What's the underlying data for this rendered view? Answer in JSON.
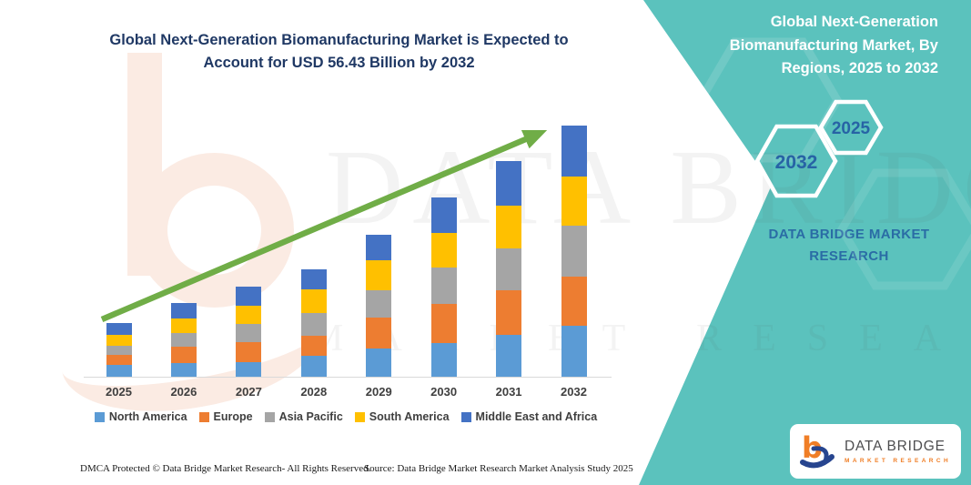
{
  "colors": {
    "teal": "#5BC2BD",
    "title_navy": "#1F3864",
    "hex_label_blue": "#2763A5",
    "arrow_green": "#70AD47",
    "axis_gray": "#D9D9D9"
  },
  "left_title": "Global Next-Generation Biomanufacturing Market is Expected to Account for USD 56.43 Billion by 2032",
  "right_panel": {
    "title": "Global Next-Generation Biomanufacturing Market, By Regions, 2025 to 2032",
    "hexagon_large_label": "2032",
    "hexagon_small_label": "2025",
    "brand_caption": "DATA BRIDGE MARKET RESEARCH"
  },
  "watermarks": {
    "big_text": "DATA BRIDGE",
    "small_text": "MARKET RESEARCH"
  },
  "chart_data": {
    "type": "bar",
    "stacked": true,
    "title": "Global Next-Generation Biomanufacturing Market is Expected to Account for USD 56.43 Billion by 2032",
    "unit": "USD Billion",
    "categories": [
      "2025",
      "2026",
      "2027",
      "2028",
      "2029",
      "2030",
      "2031",
      "2032"
    ],
    "series": [
      {
        "name": "North America",
        "color": "#5B9BD5",
        "values": [
          2.7,
          3.1,
          3.3,
          4.7,
          6.3,
          7.6,
          9.4,
          11.5
        ]
      },
      {
        "name": "Europe",
        "color": "#ED7D31",
        "values": [
          2.2,
          3.7,
          4.5,
          4.5,
          7.0,
          8.8,
          10.0,
          11.0
        ]
      },
      {
        "name": "Asia Pacific",
        "color": "#A5A5A5",
        "values": [
          2.0,
          3.1,
          4.1,
          5.1,
          6.1,
          8.2,
          9.4,
          11.5
        ]
      },
      {
        "name": "South America",
        "color": "#FFC000",
        "values": [
          2.5,
          3.1,
          4.1,
          5.3,
          6.7,
          7.8,
          9.6,
          11.0
        ]
      },
      {
        "name": "Middle East and Africa",
        "color": "#4472C4",
        "values": [
          2.7,
          3.5,
          4.3,
          4.5,
          5.9,
          8.0,
          10.0,
          11.4
        ]
      }
    ],
    "totals_usd_billion": [
      12.1,
      16.5,
      20.3,
      24.1,
      32.0,
      40.4,
      48.4,
      56.43
    ],
    "stated_value_2032": "USD 56.43 Billion",
    "ylim": [
      0,
      60
    ],
    "gridlines": false,
    "legend_position": "bottom",
    "annotation_arrow": {
      "color": "#70AD47",
      "from_category": "2025",
      "to_category": "2032"
    }
  },
  "footer": {
    "left": "DMCA Protected © Data Bridge Market Research-  All Rights Reserved.",
    "source": "Source: Data Bridge Market Research  Market Analysis Study 2025"
  },
  "logo_card": {
    "name": "DATA BRIDGE",
    "sub": "MARKET RESEARCH"
  }
}
